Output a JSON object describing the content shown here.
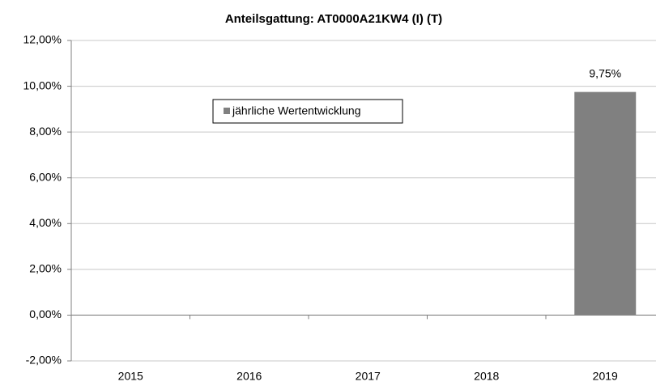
{
  "chart_data": {
    "type": "bar",
    "title": "Anteilsgattung: AT0000A21KW4  (I) (T)",
    "categories": [
      "2015",
      "2016",
      "2017",
      "2018",
      "2019"
    ],
    "series": [
      {
        "name": "jährliche Wertentwicklung",
        "color": "#808080",
        "values": [
          null,
          null,
          null,
          null,
          9.75
        ],
        "value_labels": [
          null,
          null,
          null,
          null,
          "9,75%"
        ]
      }
    ],
    "ylim": [
      -2,
      12
    ],
    "yticks": [
      {
        "value": -2,
        "label": "-2,00%"
      },
      {
        "value": 0,
        "label": "0,00%"
      },
      {
        "value": 2,
        "label": "2,00%"
      },
      {
        "value": 4,
        "label": "4,00%"
      },
      {
        "value": 6,
        "label": "6,00%"
      },
      {
        "value": 8,
        "label": "8,00%"
      },
      {
        "value": 10,
        "label": "10,00%"
      },
      {
        "value": 12,
        "label": "12,00%"
      }
    ],
    "grid": true,
    "legend": "upper-left"
  }
}
